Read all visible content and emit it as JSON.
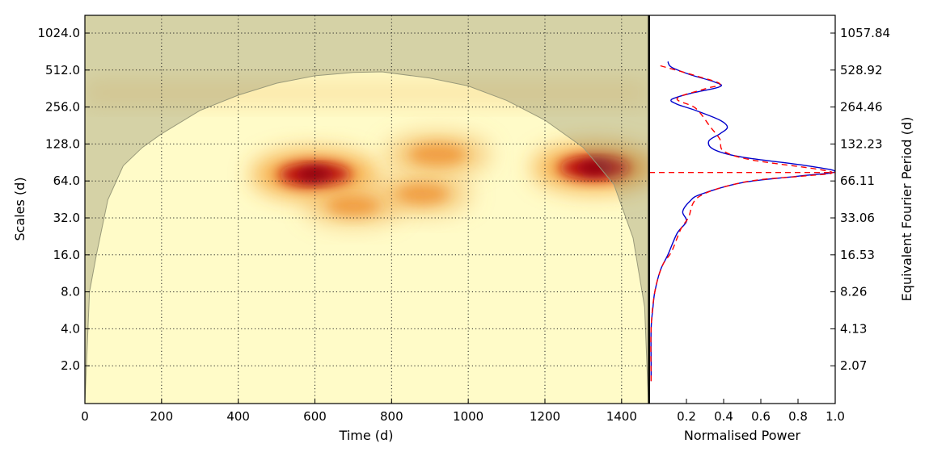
{
  "chart_data": [
    {
      "type": "heatmap",
      "title": "",
      "xlabel": "Time (d)",
      "ylabel": "Scales (d)",
      "xlim": [
        0,
        1470
      ],
      "y_scale": "log2",
      "ylim": [
        1,
        1500
      ],
      "grid": true,
      "x_ticks": [
        "0",
        "200",
        "400",
        "600",
        "800",
        "1000",
        "1200",
        "1400"
      ],
      "y_ticks": [
        "1024.0",
        "512.0",
        "256.0",
        "128.0",
        "64.0",
        "32.0",
        "16.0",
        "8.0",
        "4.0",
        "2.0"
      ],
      "colormap": "YlOrRd",
      "cone_of_influence": [
        [
          0,
          1
        ],
        [
          12,
          8
        ],
        [
          30,
          16
        ],
        [
          60,
          45
        ],
        [
          100,
          85
        ],
        [
          150,
          120
        ],
        [
          200,
          155
        ],
        [
          300,
          240
        ],
        [
          400,
          320
        ],
        [
          500,
          400
        ],
        [
          600,
          460
        ],
        [
          700,
          490
        ],
        [
          775,
          495
        ],
        [
          900,
          440
        ],
        [
          1000,
          380
        ],
        [
          1100,
          290
        ],
        [
          1200,
          200
        ],
        [
          1300,
          120
        ],
        [
          1380,
          60
        ],
        [
          1430,
          22
        ],
        [
          1460,
          6
        ],
        [
          1470,
          1
        ]
      ],
      "hotspots": [
        {
          "time": 600,
          "scale": 72,
          "power": 1.0
        },
        {
          "time": 1330,
          "scale": 82,
          "power": 0.95
        },
        {
          "time": 920,
          "scale": 105,
          "power": 0.5
        },
        {
          "time": 880,
          "scale": 50,
          "power": 0.35
        },
        {
          "time": 700,
          "scale": 40,
          "power": 0.3
        }
      ]
    },
    {
      "type": "line",
      "xlabel": "Normalised Power",
      "ylabel": "Equivalent Fourier Period (d)",
      "xlim": [
        0,
        1.0
      ],
      "x_ticks": [
        "0.2",
        "0.4",
        "0.6",
        "0.8",
        "1.0"
      ],
      "y_ticks": [
        "1057.84",
        "528.92",
        "264.46",
        "132.23",
        "66.11",
        "33.06",
        "16.53",
        "8.26",
        "4.13",
        "2.07"
      ],
      "series": [
        {
          "color": "#0000cc",
          "style": "solid",
          "points": [
            [
              0.01,
              1.5
            ],
            [
              0.01,
              2
            ],
            [
              0.01,
              4
            ],
            [
              0.02,
              6
            ],
            [
              0.03,
              8
            ],
            [
              0.06,
              12
            ],
            [
              0.1,
              16
            ],
            [
              0.15,
              24
            ],
            [
              0.2,
              30
            ],
            [
              0.18,
              36
            ],
            [
              0.22,
              44
            ],
            [
              0.28,
              50
            ],
            [
              0.5,
              62
            ],
            [
              0.8,
              70
            ],
            [
              1.0,
              76
            ],
            [
              0.85,
              85
            ],
            [
              0.5,
              100
            ],
            [
              0.35,
              115
            ],
            [
              0.32,
              135
            ],
            [
              0.38,
              155
            ],
            [
              0.42,
              175
            ],
            [
              0.38,
              200
            ],
            [
              0.25,
              240
            ],
            [
              0.15,
              270
            ],
            [
              0.12,
              295
            ],
            [
              0.22,
              330
            ],
            [
              0.38,
              375
            ],
            [
              0.35,
              410
            ],
            [
              0.22,
              470
            ],
            [
              0.12,
              540
            ],
            [
              0.1,
              600
            ]
          ]
        },
        {
          "color": "#ff0000",
          "style": "dashed",
          "points": [
            [
              0.01,
              1.5
            ],
            [
              0.01,
              4
            ],
            [
              0.03,
              8
            ],
            [
              0.07,
              13
            ],
            [
              0.12,
              17
            ],
            [
              0.17,
              26
            ],
            [
              0.21,
              32
            ],
            [
              0.27,
              48
            ],
            [
              0.52,
              63
            ],
            [
              0.82,
              70
            ],
            [
              0.98,
              74
            ],
            [
              0.9,
              80
            ],
            [
              0.55,
              95
            ],
            [
              0.4,
              112
            ],
            [
              0.38,
              140
            ],
            [
              0.33,
              175
            ],
            [
              0.25,
              250
            ],
            [
              0.15,
              300
            ],
            [
              0.3,
              360
            ],
            [
              0.38,
              395
            ],
            [
              0.25,
              460
            ],
            [
              0.05,
              560
            ]
          ]
        }
      ],
      "peak_period": 75
    }
  ]
}
